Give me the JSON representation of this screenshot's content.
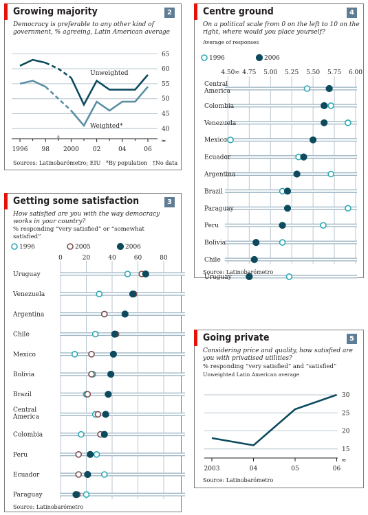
{
  "panels": {
    "p2": {
      "title": "Growing majority",
      "number": "2",
      "subtitle": "Democracy is preferable to any other kind of government, % agreeing, Latin American average",
      "source": "Sources: Latinobarómetro; EIU",
      "footnote1": "*By population",
      "footnote2": "No data",
      "label_unweighted": "Unweighted",
      "label_weighted": "Weighted*"
    },
    "p3": {
      "title": "Getting some satisfaction",
      "number": "3",
      "subtitle": "How satisfied are you with the way democracy works in your country?",
      "subtitle2": "% responding “very satisfied” or “somewhat satisfied”",
      "source": "Source: Latinobarómetro"
    },
    "p4": {
      "title": "Centre ground",
      "number": "4",
      "subtitle": "On a political scale from 0 on the left to 10 on the right, where would you place yourself?",
      "subtitle2": "Average of responses",
      "source": "Source: Latinobarómetro"
    },
    "p5": {
      "title": "Going private",
      "number": "5",
      "subtitle": "Considering price and quality, how satisfied are you with privatised utilities?",
      "subtitle2": "% responding “very satisfied” and “satisfied”",
      "subtitle3": "Unweighted Latin American average",
      "source": "Source: Latinobarómetro"
    }
  },
  "colors": {
    "dark": "#0d4a5e",
    "light": "#5a8fa3",
    "cyan": "#2aa7b4",
    "red": "#e3120b",
    "badge": "#5f7c95"
  },
  "chart_data": [
    {
      "type": "line",
      "title": "Growing majority",
      "x": [
        1996,
        1997,
        1998,
        1999,
        2000,
        2001,
        2002,
        2003,
        2004,
        2005,
        2006
      ],
      "x_ticks": [
        "1996",
        "98",
        "2000",
        "02",
        "04",
        "06"
      ],
      "ylim": [
        38,
        66
      ],
      "y_ticks": [
        "40",
        "45",
        "50",
        "55",
        "60",
        "65"
      ],
      "no_data_year": 1999,
      "series": [
        {
          "name": "Unweighted",
          "values": [
            61,
            63,
            62,
            60,
            57,
            48,
            56,
            53,
            53,
            53,
            58
          ]
        },
        {
          "name": "Weighted*",
          "values": [
            55,
            56,
            54,
            50,
            46,
            41,
            49,
            46,
            49,
            49,
            54
          ]
        }
      ]
    },
    {
      "type": "scatter",
      "title": "Getting some satisfaction",
      "xlim": [
        0,
        80
      ],
      "x_ticks": [
        "0",
        "20",
        "40",
        "60",
        "80"
      ],
      "categories": [
        "Uruguay",
        "Venezuela",
        "Argentina",
        "Chile",
        "Mexico",
        "Bolivia",
        "Brazil",
        "Central\nAmerica",
        "Colombia",
        "Peru",
        "Ecuador",
        "Paraguay"
      ],
      "series": [
        {
          "name": "1996",
          "values": [
            52,
            30,
            34,
            27,
            11,
            25,
            20,
            27,
            16,
            28,
            34,
            20
          ]
        },
        {
          "name": "2005",
          "values": [
            63,
            57,
            34,
            43,
            24,
            24,
            21,
            29,
            31,
            14,
            14,
            13
          ]
        },
        {
          "name": "2006",
          "values": [
            66,
            56,
            50,
            42,
            41,
            39,
            37,
            35,
            34,
            23,
            21,
            12
          ]
        }
      ]
    },
    {
      "type": "scatter",
      "title": "Centre ground",
      "xlim": [
        4.4,
        6.0
      ],
      "x_ticks": [
        "4.50",
        "4.75",
        "5.00",
        "5.25",
        "5.50",
        "5.75",
        "6.00"
      ],
      "categories": [
        "Central\nAmerica",
        "Colombia",
        "Venezuela",
        "Mexico",
        "Ecuador",
        "Argentina",
        "Brazil",
        "Paraguay",
        "Peru",
        "Bolivia",
        "Chile",
        "Uruguay"
      ],
      "series": [
        {
          "name": "1996",
          "values": [
            5.43,
            5.71,
            5.91,
            4.53,
            5.33,
            5.71,
            5.14,
            5.91,
            5.62,
            5.14,
            4.81,
            5.22
          ]
        },
        {
          "name": "2006",
          "values": [
            5.69,
            5.63,
            5.63,
            5.5,
            5.39,
            5.31,
            5.2,
            5.2,
            5.14,
            4.83,
            4.81,
            4.75
          ]
        }
      ]
    },
    {
      "type": "line",
      "title": "Going private",
      "categories": [
        "2003",
        "04",
        "05",
        "06"
      ],
      "ylim": [
        14,
        30
      ],
      "y_ticks": [
        "15",
        "20",
        "25",
        "30"
      ],
      "series": [
        {
          "name": "",
          "values": [
            18,
            16,
            26,
            30
          ]
        }
      ]
    }
  ]
}
